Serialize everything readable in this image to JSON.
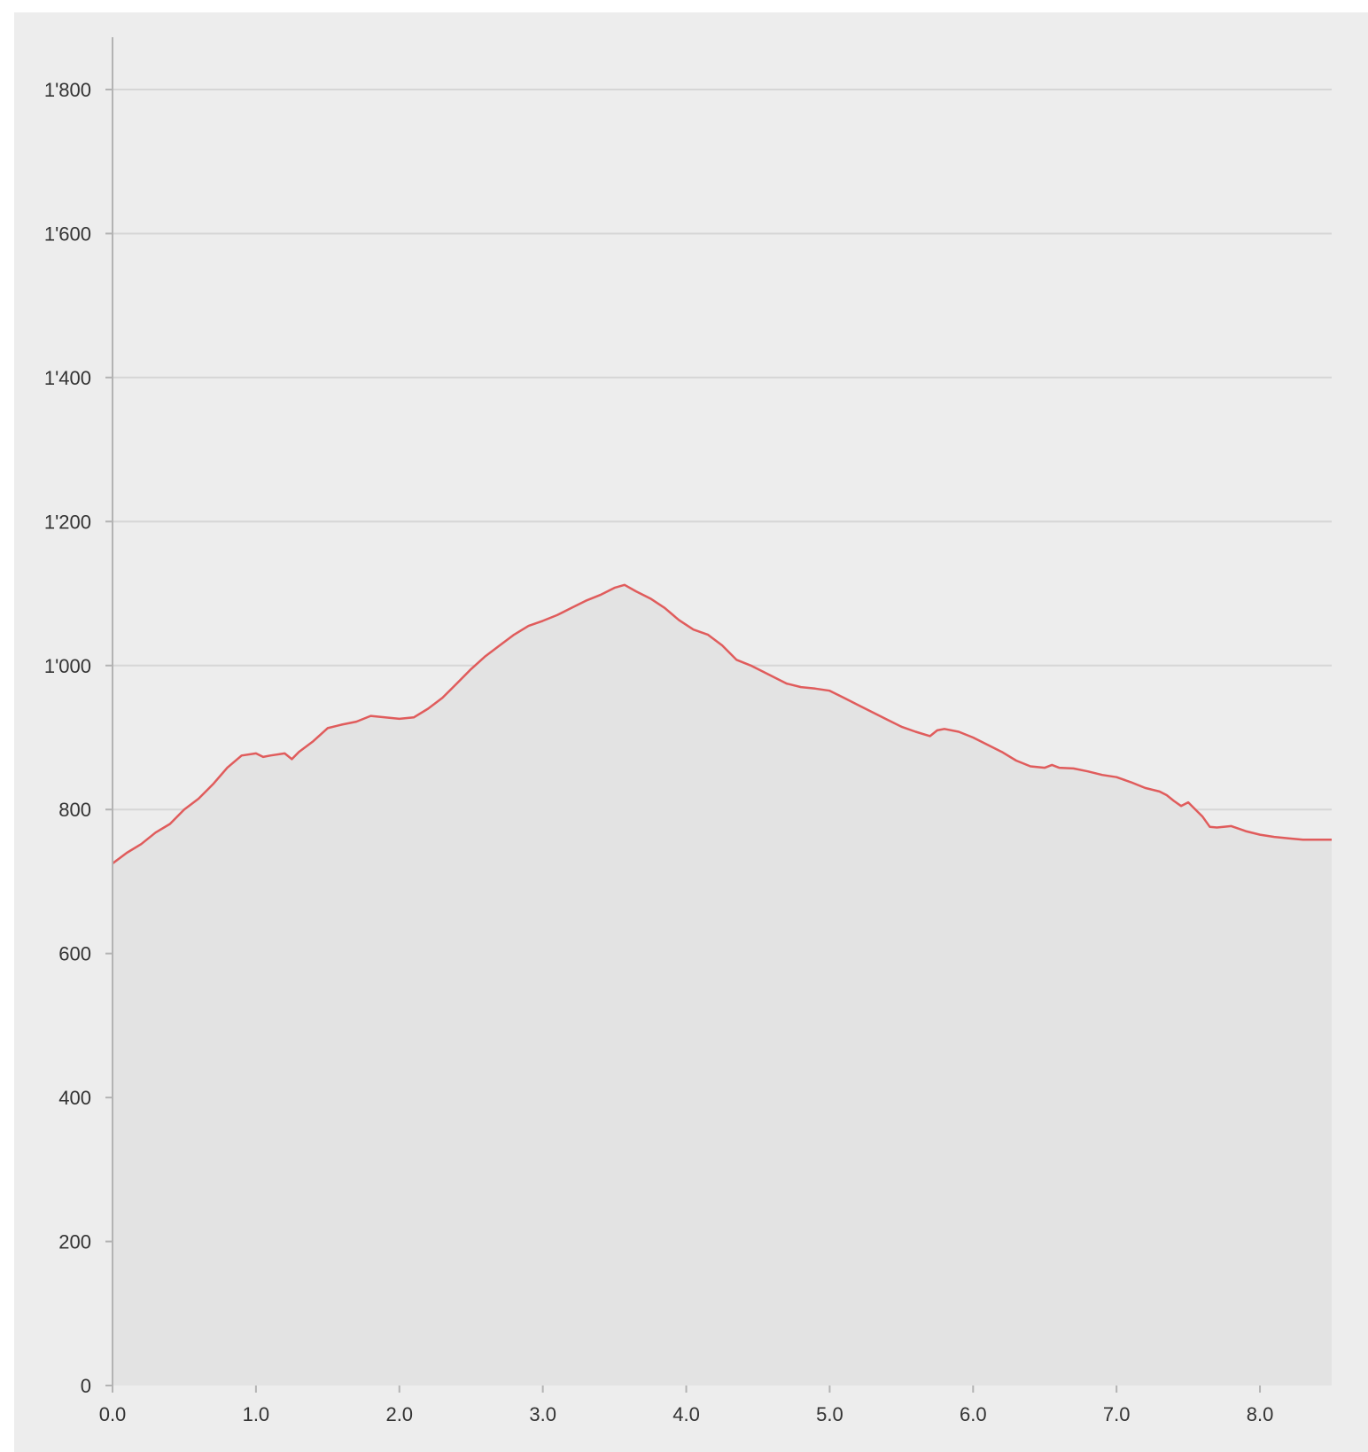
{
  "chart_data": {
    "type": "area",
    "title": "",
    "xlabel": "",
    "ylabel": "",
    "xlim": [
      0,
      8.5
    ],
    "ylim": [
      0,
      1850
    ],
    "grid": true,
    "legend": "none",
    "colors": {
      "line": "#e05c5c",
      "fill": "#e3e3e3",
      "background": "#ededed",
      "grid": "#d6d6d6",
      "axis": "#b3b3b3"
    },
    "x_ticks": [
      "0.0",
      "1.0",
      "2.0",
      "3.0",
      "4.0",
      "5.0",
      "6.0",
      "7.0",
      "8.0"
    ],
    "y_ticks": [
      "0",
      "200",
      "400",
      "600",
      "800",
      "1'000",
      "1'200",
      "1'400",
      "1'600",
      "1'800"
    ],
    "series": [
      {
        "x": [
          0.0,
          0.1,
          0.2,
          0.3,
          0.4,
          0.5,
          0.6,
          0.7,
          0.8,
          0.9,
          1.0,
          1.05,
          1.1,
          1.2,
          1.25,
          1.3,
          1.4,
          1.5,
          1.6,
          1.7,
          1.8,
          1.9,
          2.0,
          2.1,
          2.2,
          2.3,
          2.4,
          2.5,
          2.6,
          2.7,
          2.8,
          2.9,
          3.0,
          3.1,
          3.2,
          3.3,
          3.4,
          3.5,
          3.57,
          3.65,
          3.75,
          3.85,
          3.95,
          4.05,
          4.15,
          4.25,
          4.35,
          4.45,
          4.6,
          4.7,
          4.8,
          4.9,
          5.0,
          5.1,
          5.2,
          5.3,
          5.4,
          5.5,
          5.6,
          5.7,
          5.75,
          5.8,
          5.9,
          6.0,
          6.1,
          6.2,
          6.3,
          6.4,
          6.5,
          6.55,
          6.6,
          6.7,
          6.8,
          6.9,
          7.0,
          7.1,
          7.2,
          7.3,
          7.35,
          7.4,
          7.45,
          7.5,
          7.55,
          7.6,
          7.65,
          7.7,
          7.8,
          7.9,
          8.0,
          8.1,
          8.2,
          8.3,
          8.4,
          8.5
        ],
        "y": [
          725,
          740,
          752,
          768,
          780,
          800,
          815,
          835,
          858,
          875,
          878,
          873,
          875,
          878,
          870,
          880,
          895,
          913,
          918,
          922,
          930,
          928,
          926,
          928,
          940,
          955,
          975,
          995,
          1013,
          1028,
          1043,
          1055,
          1062,
          1070,
          1080,
          1090,
          1098,
          1108,
          1112,
          1103,
          1093,
          1080,
          1063,
          1050,
          1043,
          1028,
          1008,
          1000,
          985,
          975,
          970,
          968,
          965,
          955,
          945,
          935,
          925,
          915,
          908,
          902,
          910,
          912,
          908,
          900,
          890,
          880,
          868,
          860,
          858,
          862,
          858,
          857,
          853,
          848,
          845,
          838,
          830,
          825,
          820,
          812,
          805,
          810,
          800,
          790,
          776,
          775,
          777,
          770,
          765,
          762,
          760,
          758,
          758,
          758
        ]
      }
    ]
  }
}
